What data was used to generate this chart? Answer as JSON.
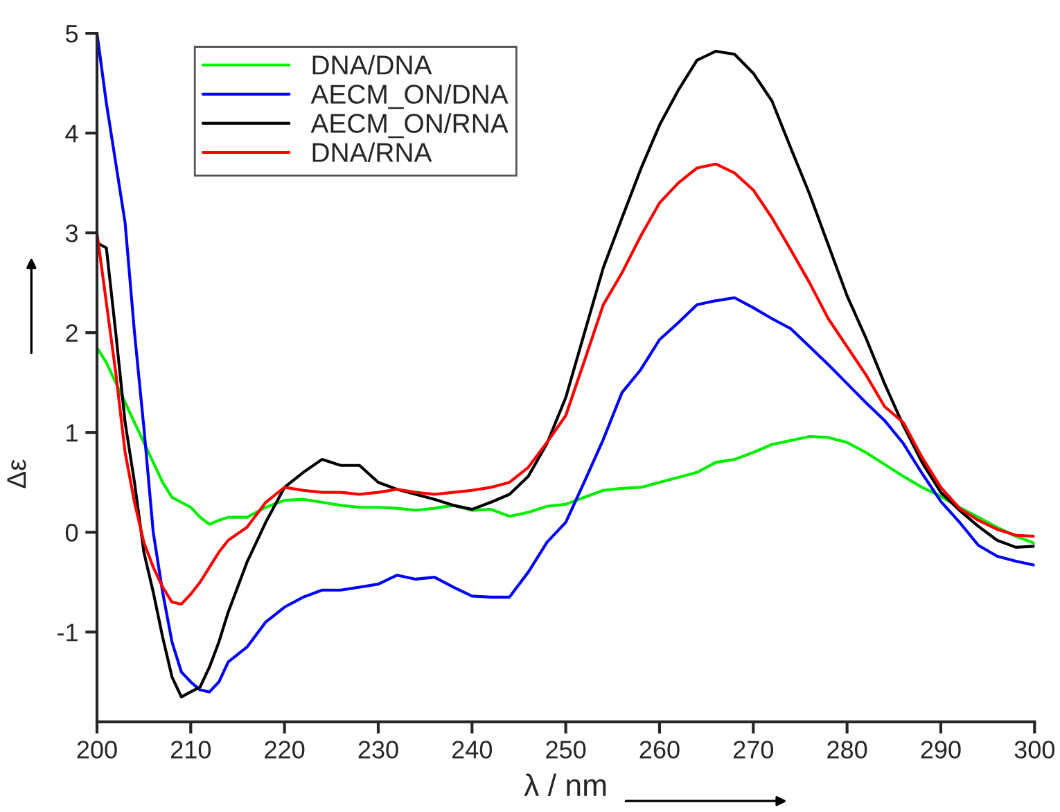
{
  "chart_data": {
    "type": "line",
    "xlabel": "λ / nm",
    "ylabel": "Δε",
    "x": [
      200,
      201,
      202,
      203,
      204,
      205,
      206,
      207,
      208,
      209,
      210,
      211,
      212,
      213,
      214,
      216,
      218,
      220,
      222,
      224,
      226,
      228,
      230,
      232,
      234,
      236,
      238,
      240,
      242,
      244,
      246,
      248,
      250,
      252,
      254,
      256,
      258,
      260,
      262,
      264,
      266,
      268,
      270,
      272,
      274,
      276,
      278,
      280,
      282,
      284,
      286,
      288,
      290,
      292,
      294,
      296,
      298,
      300
    ],
    "series": [
      {
        "name": "DNA/DNA",
        "color": "#00ee00",
        "values": [
          1.85,
          1.7,
          1.5,
          1.3,
          1.1,
          0.9,
          0.7,
          0.5,
          0.35,
          0.3,
          0.25,
          0.15,
          0.08,
          0.12,
          0.15,
          0.15,
          0.25,
          0.32,
          0.33,
          0.3,
          0.27,
          0.25,
          0.25,
          0.24,
          0.22,
          0.24,
          0.27,
          0.22,
          0.23,
          0.16,
          0.2,
          0.26,
          0.28,
          0.35,
          0.42,
          0.44,
          0.45,
          0.5,
          0.55,
          0.6,
          0.7,
          0.73,
          0.8,
          0.88,
          0.92,
          0.96,
          0.95,
          0.9,
          0.8,
          0.68,
          0.56,
          0.45,
          0.36,
          0.25,
          0.15,
          0.05,
          -0.04,
          -0.11
        ]
      },
      {
        "name": "AECM_ON/DNA",
        "color": "#0000ff",
        "values": [
          5.0,
          4.3,
          3.7,
          3.1,
          2.0,
          1.05,
          0.0,
          -0.6,
          -1.1,
          -1.4,
          -1.5,
          -1.58,
          -1.6,
          -1.5,
          -1.3,
          -1.15,
          -0.9,
          -0.75,
          -0.65,
          -0.58,
          -0.58,
          -0.55,
          -0.52,
          -0.43,
          -0.47,
          -0.45,
          -0.55,
          -0.64,
          -0.65,
          -0.65,
          -0.4,
          -0.1,
          0.1,
          0.51,
          0.93,
          1.4,
          1.63,
          1.93,
          2.1,
          2.28,
          2.32,
          2.35,
          2.25,
          2.14,
          2.04,
          1.86,
          1.68,
          1.49,
          1.3,
          1.12,
          0.89,
          0.59,
          0.31,
          0.1,
          -0.13,
          -0.24,
          -0.29,
          -0.33
        ]
      },
      {
        "name": "AECM_ON/RNA",
        "color": "#000000",
        "values": [
          2.9,
          2.85,
          2.0,
          1.1,
          0.5,
          -0.2,
          -0.6,
          -1.05,
          -1.45,
          -1.65,
          -1.6,
          -1.55,
          -1.35,
          -1.1,
          -0.8,
          -0.3,
          0.1,
          0.45,
          0.6,
          0.73,
          0.67,
          0.67,
          0.5,
          0.43,
          0.38,
          0.33,
          0.27,
          0.23,
          0.3,
          0.38,
          0.56,
          0.89,
          1.35,
          2.0,
          2.65,
          3.15,
          3.64,
          4.08,
          4.43,
          4.73,
          4.82,
          4.79,
          4.6,
          4.32,
          3.85,
          3.39,
          2.88,
          2.37,
          1.95,
          1.49,
          1.07,
          0.7,
          0.4,
          0.22,
          0.06,
          -0.08,
          -0.15,
          -0.14
        ]
      },
      {
        "name": "DNA/RNA",
        "color": "#ff0000",
        "values": [
          3.0,
          2.3,
          1.6,
          0.8,
          0.3,
          -0.1,
          -0.35,
          -0.55,
          -0.7,
          -0.72,
          -0.62,
          -0.5,
          -0.35,
          -0.2,
          -0.08,
          0.05,
          0.3,
          0.45,
          0.42,
          0.4,
          0.4,
          0.38,
          0.4,
          0.43,
          0.4,
          0.38,
          0.4,
          0.42,
          0.45,
          0.5,
          0.65,
          0.9,
          1.17,
          1.72,
          2.28,
          2.6,
          2.97,
          3.3,
          3.5,
          3.65,
          3.69,
          3.6,
          3.43,
          3.15,
          2.83,
          2.5,
          2.14,
          1.86,
          1.58,
          1.26,
          1.1,
          0.75,
          0.45,
          0.24,
          0.12,
          0.03,
          -0.03,
          -0.04
        ]
      }
    ],
    "xlim": [
      200,
      300
    ],
    "ylim": [
      -1.9,
      5
    ],
    "xticks": [
      200,
      210,
      220,
      230,
      240,
      250,
      260,
      270,
      280,
      290,
      300
    ],
    "yticks": [
      -1,
      0,
      1,
      2,
      3,
      4,
      5
    ],
    "grid": false,
    "legend": "top left",
    "marker": "none",
    "line_style": "solid"
  }
}
